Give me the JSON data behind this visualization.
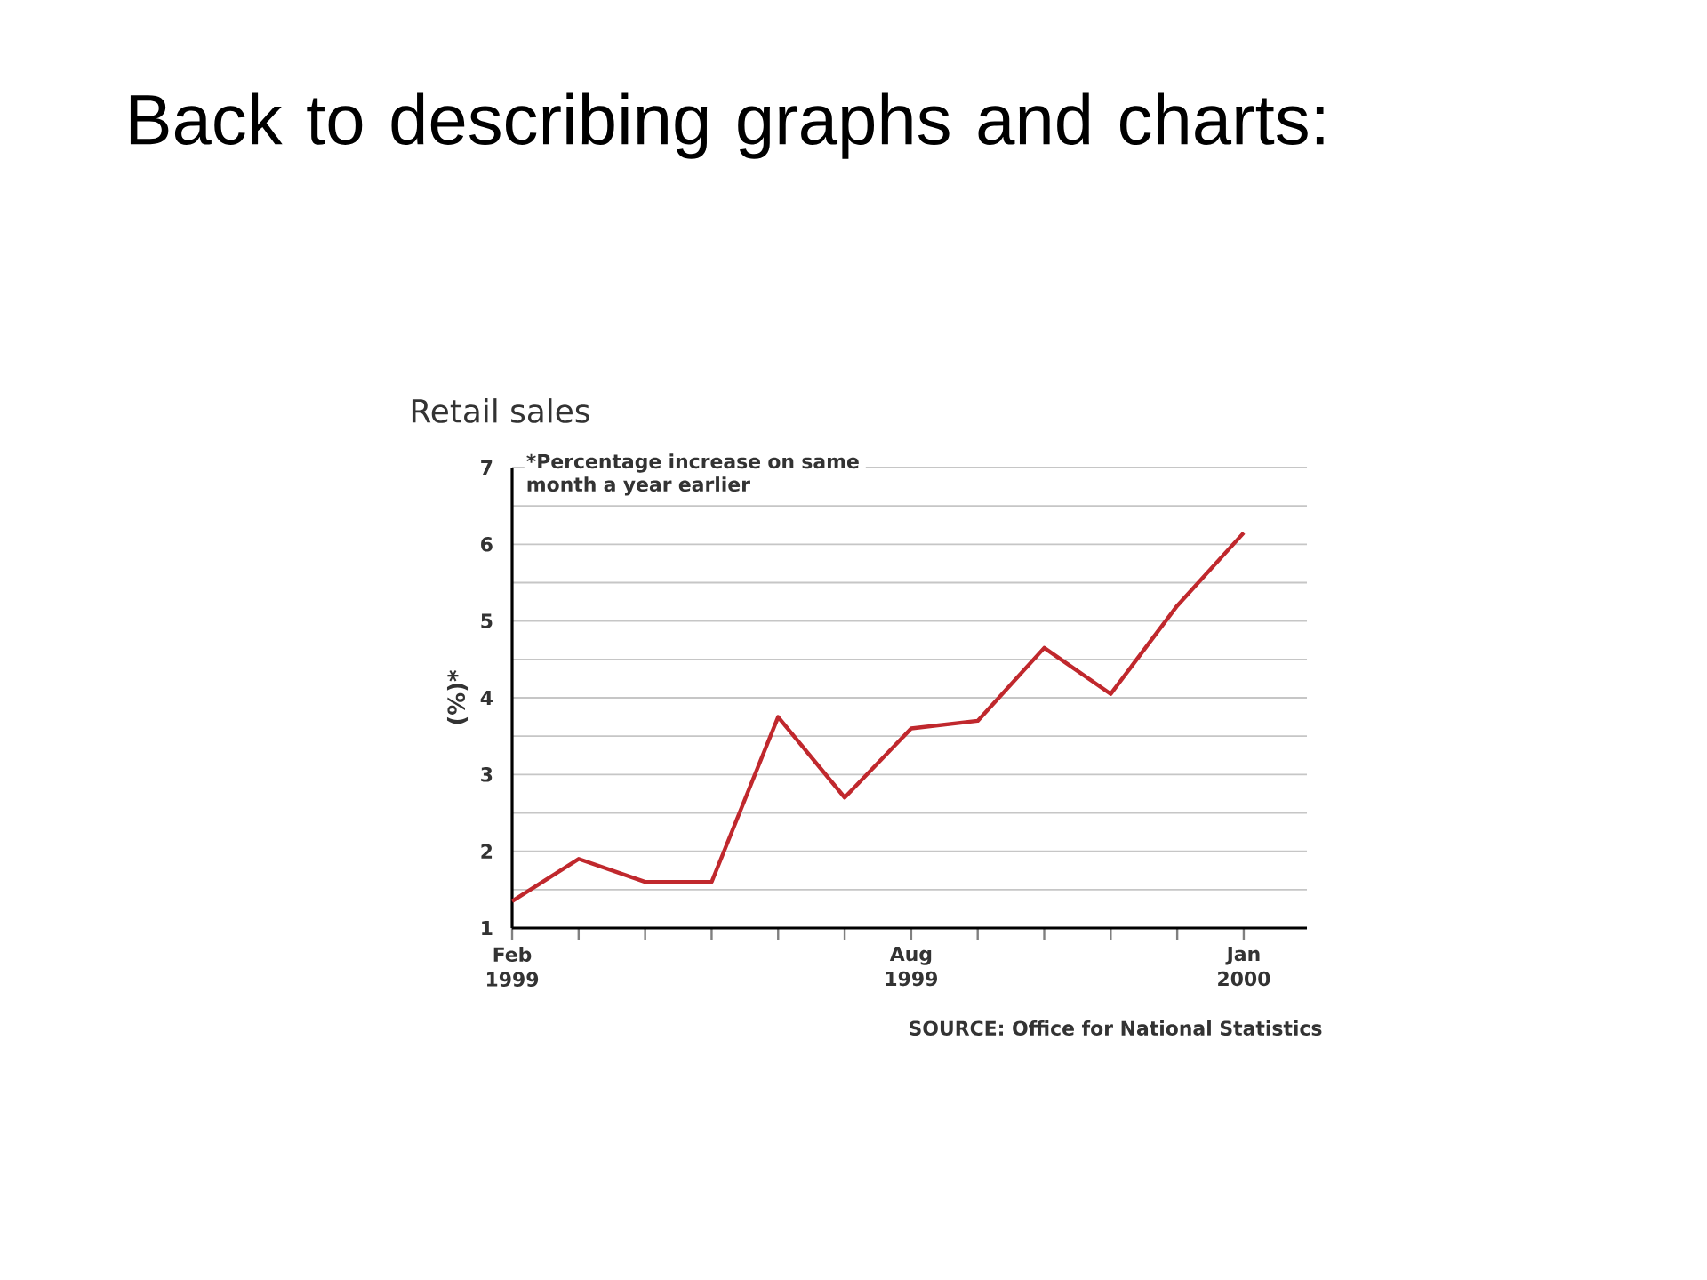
{
  "chart_data": {
    "type": "line",
    "title": "Back to describing graphs and charts:",
    "subtitle": "Retail sales",
    "ylabel": "(%)*",
    "categories": [
      "Feb 1999",
      null,
      null,
      null,
      null,
      null,
      "Aug 1999",
      null,
      null,
      null,
      null,
      "Jan 2000"
    ],
    "values": [
      1.35,
      1.9,
      1.6,
      1.6,
      3.75,
      2.7,
      3.6,
      3.7,
      4.65,
      4.05,
      5.2,
      6.15
    ],
    "color": "#c0282d",
    "ylim": [
      1,
      7
    ],
    "yticks": [
      1,
      {
        "value": 1.5,
        "label": null
      },
      2,
      {
        "value": 2.5,
        "label": null
      },
      3,
      {
        "value": 3.5,
        "label": null
      },
      4,
      {
        "value": 4.5,
        "label": null
      },
      5,
      {
        "value": 5.5,
        "label": null
      },
      6,
      {
        "value": 6.5,
        "label": null
      },
      7
    ],
    "grid": "y",
    "annotations": [
      "*Percentage increase on same month a year earlier",
      "SOURCE: Office for National Statistics"
    ]
  }
}
